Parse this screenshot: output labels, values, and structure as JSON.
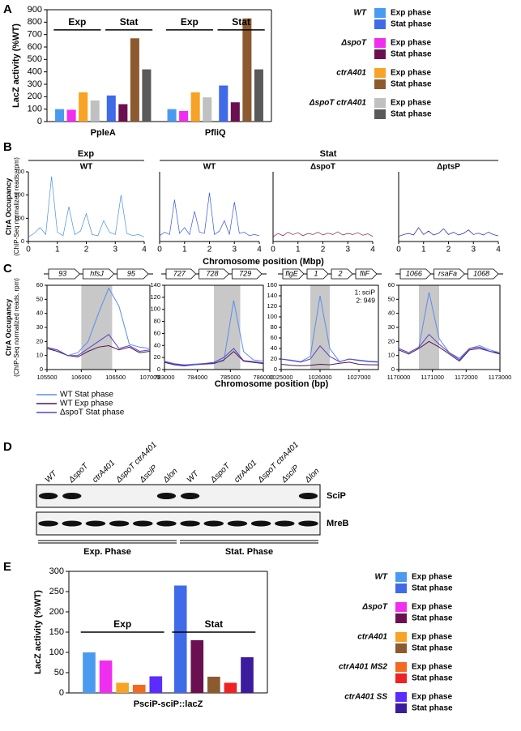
{
  "panel_labels": [
    "A",
    "B",
    "C",
    "D",
    "E"
  ],
  "chart_data": [
    {
      "type": "bar",
      "ylabel": "LacZ activity (%WT)",
      "categories": [
        "PpleA",
        "PfliQ"
      ],
      "annotations": [
        "Exp",
        "Stat",
        "Exp",
        "Stat"
      ],
      "series": [
        {
          "group": "WT",
          "name": "Exp phase",
          "color": "#4a9bf0",
          "values": [
            100,
            100
          ]
        },
        {
          "group": "WT",
          "name": "Stat phase",
          "color": "#3f6ae8",
          "values": [
            210,
            290
          ]
        },
        {
          "group": "ΔspoT",
          "name": "Exp phase",
          "color": "#f02ef0",
          "values": [
            95,
            85
          ]
        },
        {
          "group": "ΔspoT",
          "name": "Stat phase",
          "color": "#6a1050",
          "values": [
            140,
            155
          ]
        },
        {
          "group": "ctrA401",
          "name": "Exp phase",
          "color": "#f7a325",
          "values": [
            235,
            235
          ]
        },
        {
          "group": "ctrA401",
          "name": "Stat phase",
          "color": "#8c5a2e",
          "values": [
            670,
            830
          ]
        },
        {
          "group": "ΔspoT ctrA401",
          "name": "Exp phase",
          "color": "#c0c0c0",
          "values": [
            170,
            195
          ]
        },
        {
          "group": "ΔspoT ctrA401",
          "name": "Stat phase",
          "color": "#5a5a5a",
          "values": [
            420,
            420
          ]
        }
      ],
      "ylim": [
        0,
        900
      ],
      "yticks": [
        0,
        100,
        200,
        300,
        400,
        500,
        600,
        700,
        800,
        900
      ]
    },
    {
      "type": "line",
      "title": "WT",
      "x": [
        0,
        0.2,
        0.4,
        0.6,
        0.8,
        1,
        1.2,
        1.4,
        1.6,
        1.8,
        2,
        2.2,
        2.4,
        2.6,
        2.8,
        3,
        3.2,
        3.4,
        3.6,
        3.8,
        4
      ],
      "series": [
        {
          "color": "#4a90e2",
          "values": [
            20,
            35,
            60,
            30,
            280,
            40,
            25,
            150,
            30,
            45,
            120,
            30,
            25,
            90,
            40,
            30,
            200,
            35,
            25,
            30,
            20
          ]
        }
      ],
      "xlim": [
        0,
        4
      ],
      "xticks": [
        0,
        1,
        2,
        3,
        4
      ],
      "ylim": [
        0,
        300
      ],
      "yticks": [
        0,
        100,
        200,
        300
      ]
    },
    {
      "type": "line",
      "title": "WT",
      "x": [
        0,
        0.2,
        0.4,
        0.6,
        0.8,
        1,
        1.2,
        1.4,
        1.6,
        1.8,
        2,
        2.2,
        2.4,
        2.6,
        2.8,
        3,
        3.2,
        3.4,
        3.6,
        3.8,
        4
      ],
      "series": [
        {
          "color": "#3355dd",
          "values": [
            25,
            40,
            30,
            180,
            35,
            60,
            30,
            130,
            40,
            35,
            210,
            30,
            45,
            90,
            30,
            170,
            35,
            40,
            25,
            30,
            25
          ]
        }
      ],
      "xlim": [
        0,
        4
      ],
      "xticks": [
        0,
        1,
        2,
        3,
        4
      ],
      "ylim": [
        0,
        300
      ]
    },
    {
      "type": "line",
      "title": "ΔspoT",
      "x": [
        0,
        0.2,
        0.4,
        0.6,
        0.8,
        1,
        1.2,
        1.4,
        1.6,
        1.8,
        2,
        2.2,
        2.4,
        2.6,
        2.8,
        3,
        3.2,
        3.4,
        3.6,
        3.8,
        4
      ],
      "series": [
        {
          "color": "#7a1a4a",
          "values": [
            20,
            35,
            25,
            40,
            30,
            38,
            25,
            35,
            30,
            40,
            28,
            36,
            30,
            42,
            28,
            35,
            30,
            38,
            27,
            33,
            22
          ]
        }
      ],
      "xlim": [
        0,
        4
      ],
      "xticks": [
        0,
        1,
        2,
        3,
        4
      ],
      "ylim": [
        0,
        300
      ]
    },
    {
      "type": "line",
      "title": "ΔptsP",
      "x": [
        0,
        0.2,
        0.4,
        0.6,
        0.8,
        1,
        1.2,
        1.4,
        1.6,
        1.8,
        2,
        2.2,
        2.4,
        2.6,
        2.8,
        3,
        3.2,
        3.4,
        3.6,
        3.8,
        4
      ],
      "series": [
        {
          "color": "#1a1aa0",
          "values": [
            22,
            30,
            35,
            28,
            60,
            30,
            45,
            28,
            35,
            55,
            30,
            40,
            28,
            35,
            50,
            30,
            36,
            28,
            40,
            30,
            24
          ]
        }
      ],
      "xlim": [
        0,
        4
      ],
      "xticks": [
        0,
        1,
        2,
        3,
        4
      ],
      "ylim": [
        0,
        300
      ]
    },
    {
      "type": "line",
      "genes": [
        "93",
        "hfsJ",
        "95"
      ],
      "x": [
        105500,
        105650,
        105800,
        105950,
        106100,
        106250,
        106400,
        106550,
        106700,
        106850,
        107000
      ],
      "series": [
        {
          "name": "WT Stat phase",
          "color": "#5b8def",
          "values": [
            15,
            14,
            10,
            12,
            20,
            40,
            58,
            45,
            18,
            16,
            15
          ]
        },
        {
          "name": "WT Exp phase",
          "color": "#4a1a4a",
          "values": [
            15,
            13,
            10,
            9,
            13,
            16,
            17,
            14,
            16,
            12,
            13
          ]
        },
        {
          "name": "ΔspoT Stat phase",
          "color": "#5a3fcc",
          "values": [
            16,
            14,
            10,
            10,
            15,
            20,
            25,
            15,
            17,
            13,
            14
          ]
        }
      ],
      "highlight": [
        106000,
        106450
      ],
      "xlim": [
        105500,
        107000
      ],
      "xticks": [
        105500,
        106000,
        106500,
        107000
      ],
      "ylim": [
        0,
        60
      ],
      "yticks": [
        0,
        10,
        20,
        30,
        40,
        50,
        60
      ]
    },
    {
      "type": "line",
      "genes": [
        "727",
        "728",
        "729"
      ],
      "x": [
        783000,
        783300,
        783600,
        783900,
        784200,
        784500,
        784800,
        785100,
        785400,
        785700,
        786000
      ],
      "series": [
        {
          "color": "#5b8def",
          "values": [
            14,
            10,
            8,
            9,
            10,
            11,
            14,
            115,
            30,
            16,
            14
          ]
        },
        {
          "color": "#4a1a4a",
          "values": [
            12,
            8,
            6,
            8,
            9,
            10,
            16,
            30,
            14,
            12,
            10
          ]
        },
        {
          "color": "#5a3fcc",
          "values": [
            13,
            9,
            7,
            8,
            10,
            12,
            20,
            35,
            15,
            13,
            11
          ]
        }
      ],
      "highlight": [
        784500,
        785300
      ],
      "xlim": [
        783000,
        786000
      ],
      "xticks": [
        783000,
        784000,
        785000,
        786000
      ],
      "ylim": [
        0,
        140
      ],
      "yticks": [
        0,
        20,
        40,
        60,
        80,
        100,
        120,
        140
      ]
    },
    {
      "type": "line",
      "genes": [
        "flgE",
        "1",
        "2",
        "fliF"
      ],
      "annotations": [
        "1: sciP",
        "2: 949"
      ],
      "x": [
        1025000,
        1025250,
        1025500,
        1025750,
        1026000,
        1026250,
        1026500,
        1026750,
        1027000,
        1027250,
        1027500
      ],
      "series": [
        {
          "color": "#5b8def",
          "values": [
            20,
            18,
            15,
            25,
            140,
            40,
            15,
            20,
            18,
            16,
            15
          ]
        },
        {
          "color": "#4a1a4a",
          "values": [
            10,
            8,
            7,
            8,
            10,
            9,
            12,
            14,
            10,
            9,
            9
          ]
        },
        {
          "color": "#5a3fcc",
          "values": [
            20,
            17,
            14,
            20,
            45,
            25,
            15,
            20,
            17,
            15,
            14
          ]
        }
      ],
      "highlight": [
        1025750,
        1026250
      ],
      "xlim": [
        1025000,
        1027500
      ],
      "xticks": [
        1025000,
        1026000,
        1027000
      ],
      "ylim": [
        0,
        160
      ],
      "yticks": [
        0,
        20,
        40,
        60,
        80,
        100,
        120,
        140,
        160
      ]
    },
    {
      "type": "line",
      "genes": [
        "1066",
        "rsaFa",
        "1068"
      ],
      "x": [
        1170000,
        1170300,
        1170600,
        1170900,
        1171200,
        1171500,
        1171800,
        1172100,
        1172400,
        1172700,
        1173000
      ],
      "series": [
        {
          "color": "#5b8def",
          "values": [
            15,
            12,
            16,
            55,
            22,
            12,
            8,
            15,
            17,
            14,
            12
          ]
        },
        {
          "color": "#4a1a4a",
          "values": [
            14,
            11,
            15,
            20,
            16,
            11,
            6,
            14,
            15,
            13,
            11
          ]
        },
        {
          "color": "#5a3fcc",
          "values": [
            15,
            12,
            16,
            25,
            18,
            12,
            7,
            15,
            16,
            13,
            12
          ]
        }
      ],
      "highlight": [
        1170600,
        1171200
      ],
      "xlim": [
        1170000,
        1173000
      ],
      "xticks": [
        1170000,
        1171000,
        1172000,
        1173000
      ],
      "ylim": [
        0,
        60
      ],
      "yticks": [
        0,
        10,
        20,
        30,
        40,
        50,
        60
      ]
    },
    {
      "type": "bar",
      "ylabel": "LacZ activity (%WT)",
      "categories": [
        "PsciP-sciP::lacZ"
      ],
      "annotations": [
        "Exp",
        "Stat"
      ],
      "series": [
        {
          "group": "WT",
          "name": "Exp phase",
          "color": "#4a9bf0",
          "values": [
            100
          ]
        },
        {
          "group": "WT",
          "name": "Stat phase",
          "color": "#3f6ae8",
          "values": [
            265
          ]
        },
        {
          "group": "ΔspoT",
          "name": "Exp phase",
          "color": "#f02ef0",
          "values": [
            80
          ]
        },
        {
          "group": "ΔspoT",
          "name": "Stat phase",
          "color": "#6a1050",
          "values": [
            130
          ]
        },
        {
          "group": "ctrA401",
          "name": "Exp phase",
          "color": "#f7a325",
          "values": [
            25
          ]
        },
        {
          "group": "ctrA401",
          "name": "Stat phase",
          "color": "#8c5a2e",
          "values": [
            40
          ]
        },
        {
          "group": "ctrA401 MS2",
          "name": "Exp phase",
          "color": "#f26a1f",
          "values": [
            20
          ]
        },
        {
          "group": "ctrA401 MS2",
          "name": "Stat phase",
          "color": "#ee2222",
          "values": [
            25
          ]
        },
        {
          "group": "ctrA401 SS",
          "name": "Exp phase",
          "color": "#5b2cff",
          "values": [
            41
          ]
        },
        {
          "group": "ctrA401 SS",
          "name": "Stat phase",
          "color": "#3b1c9e",
          "values": [
            88
          ]
        }
      ],
      "ylim": [
        0,
        300
      ],
      "yticks": [
        0,
        50,
        100,
        150,
        200,
        250,
        300
      ]
    }
  ],
  "panel_b": {
    "groups": [
      "Exp",
      "Stat"
    ],
    "xlabel": "Chromosome position (Mbp)",
    "ylabel": [
      "CtrA Occupancy",
      "(ChIP-Seq normalized reads, rpm)"
    ]
  },
  "panel_c": {
    "xlabel": "Chromosome position (bp)",
    "ylabel": [
      "CtrA Occupancy",
      "(ChIP-Seq normalized reads, rpm)"
    ]
  },
  "blot": {
    "lanes": [
      "WT",
      "ΔspoT",
      "ctrA401",
      "ΔspoT ctrA401",
      "ΔsciP",
      "Δlon",
      "WT",
      "ΔspoT",
      "ctrA401",
      "ΔspoT ctrA401",
      "ΔsciP",
      "Δlon"
    ],
    "bands": [
      "SciP",
      "MreB"
    ],
    "groups": [
      "Exp. Phase",
      "Stat. Phase"
    ]
  }
}
